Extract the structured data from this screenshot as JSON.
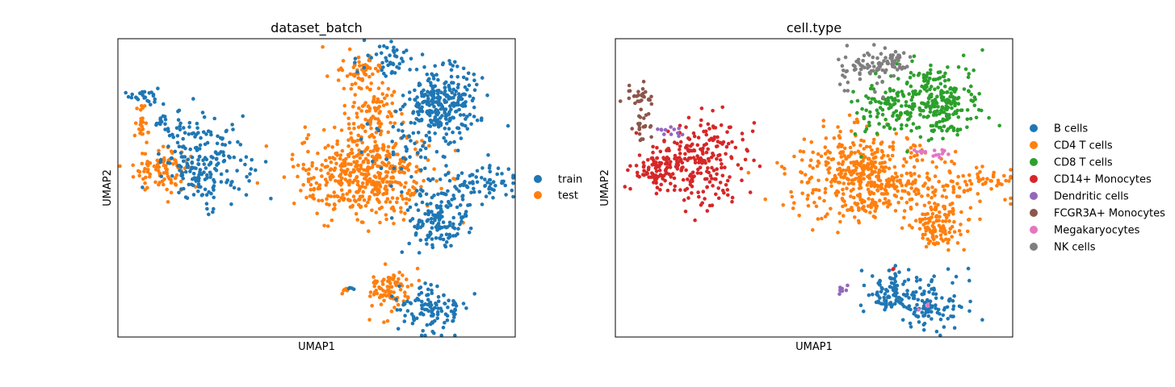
{
  "chart_data": [
    {
      "type": "scatter",
      "title": "dataset_batch",
      "xlabel": "UMAP1",
      "ylabel": "UMAP2",
      "xlim": [
        0,
        10
      ],
      "ylim": [
        0,
        10
      ],
      "grid": false,
      "ticks": false,
      "legend": {
        "placement": "right",
        "entries": [
          {
            "label": "train",
            "color": "#1f77b4"
          },
          {
            "label": "test",
            "color": "#ff7f0e"
          }
        ]
      },
      "clusters": [
        {
          "label": "train",
          "center": [
            0.65,
            8.1
          ],
          "spread": [
            0.18,
            0.15
          ],
          "n": 25
        },
        {
          "label": "train",
          "center": [
            1.2,
            7.3
          ],
          "spread": [
            0.2,
            0.22
          ],
          "n": 15
        },
        {
          "label": "test",
          "center": [
            0.6,
            7.1
          ],
          "spread": [
            0.1,
            0.45
          ],
          "n": 30
        },
        {
          "label": "test",
          "center": [
            1.1,
            5.6
          ],
          "spread": [
            0.35,
            0.35
          ],
          "n": 90
        },
        {
          "label": "train",
          "center": [
            2.2,
            5.9
          ],
          "spread": [
            0.55,
            0.7
          ],
          "n": 210
        },
        {
          "label": "test",
          "center": [
            6.2,
            5.4
          ],
          "spread": [
            0.85,
            0.75
          ],
          "n": 450
        },
        {
          "label": "test",
          "center": [
            6.1,
            8.8
          ],
          "spread": [
            0.3,
            0.35
          ],
          "n": 60
        },
        {
          "label": "test",
          "center": [
            6.6,
            7.8
          ],
          "spread": [
            0.35,
            0.35
          ],
          "n": 50
        },
        {
          "label": "test",
          "center": [
            6.3,
            6.9
          ],
          "spread": [
            0.35,
            0.35
          ],
          "n": 40
        },
        {
          "label": "train",
          "center": [
            6.8,
            9.3
          ],
          "spread": [
            0.35,
            0.3
          ],
          "n": 45
        },
        {
          "label": "train",
          "center": [
            8.2,
            7.9
          ],
          "spread": [
            0.45,
            0.6
          ],
          "n": 260
        },
        {
          "label": "train",
          "center": [
            7.5,
            6.6
          ],
          "spread": [
            0.55,
            0.7
          ],
          "n": 70
        },
        {
          "label": "train",
          "center": [
            9.1,
            5.2
          ],
          "spread": [
            0.55,
            0.3
          ],
          "n": 70
        },
        {
          "label": "train",
          "center": [
            8.1,
            4.3
          ],
          "spread": [
            0.45,
            0.4
          ],
          "n": 80
        },
        {
          "label": "train",
          "center": [
            8.1,
            3.6
          ],
          "spread": [
            0.32,
            0.32
          ],
          "n": 70
        },
        {
          "label": "test",
          "center": [
            5.7,
            1.6
          ],
          "spread": [
            0.08,
            0.07
          ],
          "n": 5
        },
        {
          "label": "train",
          "center": [
            5.85,
            1.6
          ],
          "spread": [
            0.06,
            0.06
          ],
          "n": 4
        },
        {
          "label": "test",
          "center": [
            6.85,
            1.55
          ],
          "spread": [
            0.28,
            0.38
          ],
          "n": 85
        },
        {
          "label": "train",
          "center": [
            7.9,
            1.0
          ],
          "spread": [
            0.42,
            0.45
          ],
          "n": 110
        }
      ]
    },
    {
      "type": "scatter",
      "title": "cell.type",
      "xlabel": "UMAP1",
      "ylabel": "UMAP2",
      "xlim": [
        0,
        10
      ],
      "ylim": [
        0,
        10
      ],
      "grid": false,
      "ticks": false,
      "legend": {
        "placement": "right",
        "entries": [
          {
            "label": "B cells",
            "color": "#1f77b4"
          },
          {
            "label": "CD4 T cells",
            "color": "#ff7f0e"
          },
          {
            "label": "CD8 T cells",
            "color": "#2ca02c"
          },
          {
            "label": "CD14+ Monocytes",
            "color": "#d62728"
          },
          {
            "label": "Dendritic cells",
            "color": "#9467bd"
          },
          {
            "label": "FCGR3A+ Monocytes",
            "color": "#8c564b"
          },
          {
            "label": "Megakaryocytes",
            "color": "#e377c2"
          },
          {
            "label": "NK cells",
            "color": "#7f7f7f"
          }
        ]
      },
      "clusters": [
        {
          "label": "FCGR3A+ Monocytes",
          "center": [
            0.65,
            8.1
          ],
          "spread": [
            0.18,
            0.15
          ],
          "n": 25
        },
        {
          "label": "FCGR3A+ Monocytes",
          "center": [
            0.65,
            7.2
          ],
          "spread": [
            0.15,
            0.4
          ],
          "n": 25
        },
        {
          "label": "CD14+ Monocytes",
          "center": [
            1.1,
            5.6
          ],
          "spread": [
            0.35,
            0.35
          ],
          "n": 90
        },
        {
          "label": "CD14+ Monocytes",
          "center": [
            2.2,
            5.9
          ],
          "spread": [
            0.55,
            0.7
          ],
          "n": 210
        },
        {
          "label": "Dendritic cells",
          "center": [
            1.45,
            6.9
          ],
          "spread": [
            0.15,
            0.1
          ],
          "n": 12
        },
        {
          "label": "CD4 T cells",
          "center": [
            6.2,
            5.4
          ],
          "spread": [
            0.85,
            0.75
          ],
          "n": 470
        },
        {
          "label": "CD4 T cells",
          "center": [
            8.1,
            4.3
          ],
          "spread": [
            0.45,
            0.4
          ],
          "n": 60
        },
        {
          "label": "CD4 T cells",
          "center": [
            8.1,
            3.6
          ],
          "spread": [
            0.32,
            0.32
          ],
          "n": 70
        },
        {
          "label": "CD4 T cells",
          "center": [
            9.2,
            5.2
          ],
          "spread": [
            0.5,
            0.3
          ],
          "n": 60
        },
        {
          "label": "CD8 T cells",
          "center": [
            6.9,
            7.8
          ],
          "spread": [
            0.45,
            0.5
          ],
          "n": 110
        },
        {
          "label": "CD8 T cells",
          "center": [
            8.2,
            7.9
          ],
          "spread": [
            0.45,
            0.6
          ],
          "n": 230
        },
        {
          "label": "NK cells",
          "center": [
            6.3,
            8.9
          ],
          "spread": [
            0.3,
            0.3
          ],
          "n": 55
        },
        {
          "label": "NK cells",
          "center": [
            6.9,
            9.3
          ],
          "spread": [
            0.3,
            0.25
          ],
          "n": 45
        },
        {
          "label": "Megakaryocytes",
          "center": [
            7.7,
            6.2
          ],
          "spread": [
            0.15,
            0.08
          ],
          "n": 8
        },
        {
          "label": "Megakaryocytes",
          "center": [
            8.2,
            6.1
          ],
          "spread": [
            0.12,
            0.08
          ],
          "n": 8
        },
        {
          "label": "Dendritic cells",
          "center": [
            5.7,
            1.6
          ],
          "spread": [
            0.08,
            0.07
          ],
          "n": 12
        },
        {
          "label": "B cells",
          "center": [
            6.85,
            1.55
          ],
          "spread": [
            0.28,
            0.38
          ],
          "n": 90
        },
        {
          "label": "B cells",
          "center": [
            7.9,
            1.0
          ],
          "spread": [
            0.42,
            0.45
          ],
          "n": 110
        },
        {
          "label": "CD14+ Monocytes",
          "center": [
            7.0,
            2.3
          ],
          "spread": [
            0.05,
            0.05
          ],
          "n": 2
        },
        {
          "label": "Megakaryocytes",
          "center": [
            7.8,
            1.0
          ],
          "spread": [
            0.1,
            0.1
          ],
          "n": 3
        }
      ]
    }
  ]
}
